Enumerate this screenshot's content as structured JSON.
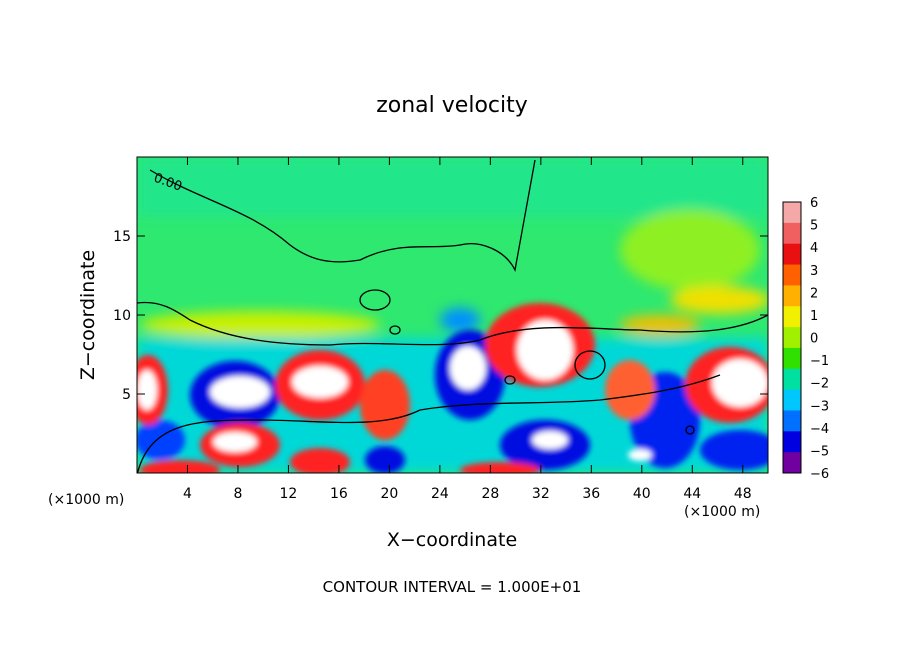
{
  "chart_data": {
    "type": "heatmap",
    "title": "zonal velocity",
    "xlabel": "X−coordinate",
    "ylabel": "Z−coordinate",
    "x_unit_left": "(×1000 m)",
    "x_unit_right": "(×1000 m)",
    "footer": "CONTOUR INTERVAL = 1.000E+01",
    "contour_label": "0.00",
    "xlim": [
      0,
      50
    ],
    "ylim": [
      0,
      20
    ],
    "x_ticks": [
      4,
      8,
      12,
      16,
      20,
      24,
      28,
      32,
      36,
      40,
      44,
      48
    ],
    "y_ticks": [
      5,
      10,
      15
    ],
    "colorbar": {
      "min": -6,
      "max": 6,
      "labels": [
        "6",
        "5",
        "4",
        "3",
        "2",
        "1",
        "0",
        "−1",
        "−2",
        "−3",
        "−4",
        "−5",
        "−6"
      ],
      "colors": [
        "#f4a8a8",
        "#f06060",
        "#e81010",
        "#ff6000",
        "#ffb000",
        "#f0f000",
        "#a0f000",
        "#30e000",
        "#00e0a0",
        "#00c8ff",
        "#0070ff",
        "#0000e0",
        "#7000a0"
      ]
    },
    "colors": {
      "background": "#ffffff",
      "upper_field": "#30e060",
      "positive_core": "#ffffff"
    }
  }
}
